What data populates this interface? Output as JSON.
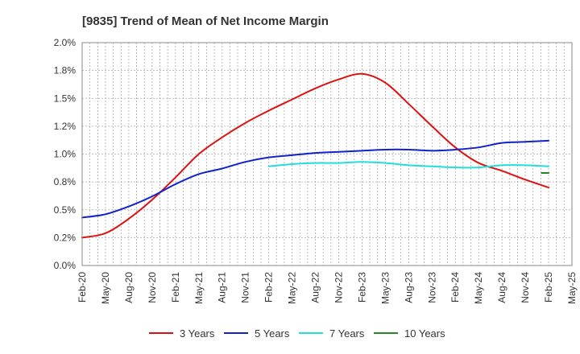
{
  "chart_data": {
    "type": "line",
    "title": "[9835]  Trend of Mean of Net Income Margin",
    "xlabel": "",
    "ylabel": "",
    "x_ticks": [
      "Feb-20",
      "May-20",
      "Aug-20",
      "Nov-20",
      "Feb-21",
      "May-21",
      "Aug-21",
      "Nov-21",
      "Feb-22",
      "May-22",
      "Aug-22",
      "Nov-22",
      "Feb-23",
      "May-23",
      "Aug-23",
      "Nov-23",
      "Feb-24",
      "May-24",
      "Aug-24",
      "Nov-24",
      "Feb-25",
      "May-25"
    ],
    "y_ticks": [
      "0.0%",
      "0.2%",
      "0.5%",
      "0.8%",
      "1.0%",
      "1.2%",
      "1.5%",
      "1.8%",
      "2.0%"
    ],
    "y_tick_values": [
      0,
      0.25,
      0.5,
      0.75,
      1.0,
      1.25,
      1.5,
      1.75,
      2.0
    ],
    "ylim": [
      0,
      2.0
    ],
    "grid": true,
    "legend_position": "bottom",
    "series": [
      {
        "name": "3 Years",
        "color": "#dd1111",
        "x_index": [
          0,
          1,
          2,
          3,
          4,
          5,
          6,
          7,
          8,
          9,
          10,
          11,
          12,
          13,
          14,
          15,
          16,
          17,
          18,
          19,
          20
        ],
        "values": [
          0.25,
          0.29,
          0.42,
          0.59,
          0.79,
          1.0,
          1.15,
          1.28,
          1.39,
          1.49,
          1.59,
          1.67,
          1.72,
          1.64,
          1.45,
          1.25,
          1.06,
          0.92,
          0.85,
          0.77,
          0.7
        ]
      },
      {
        "name": "5 Years",
        "color": "#1122cc",
        "x_index": [
          0,
          1,
          2,
          3,
          4,
          5,
          6,
          7,
          8,
          9,
          10,
          11,
          12,
          13,
          14,
          15,
          16,
          17,
          18,
          19,
          20
        ],
        "values": [
          0.43,
          0.46,
          0.53,
          0.62,
          0.73,
          0.82,
          0.87,
          0.93,
          0.97,
          0.99,
          1.01,
          1.02,
          1.03,
          1.04,
          1.04,
          1.03,
          1.04,
          1.06,
          1.1,
          1.11,
          1.12
        ]
      },
      {
        "name": "7 Years",
        "color": "#22dddd",
        "x_index": [
          8,
          9,
          10,
          11,
          12,
          13,
          14,
          15,
          16,
          17,
          18,
          19,
          20
        ],
        "values": [
          0.89,
          0.91,
          0.92,
          0.92,
          0.93,
          0.92,
          0.9,
          0.89,
          0.88,
          0.88,
          0.9,
          0.9,
          0.89
        ]
      },
      {
        "name": "10 Years",
        "color": "#228822",
        "x_index": [
          19.7,
          20
        ],
        "values": [
          0.83,
          0.83
        ]
      }
    ]
  }
}
